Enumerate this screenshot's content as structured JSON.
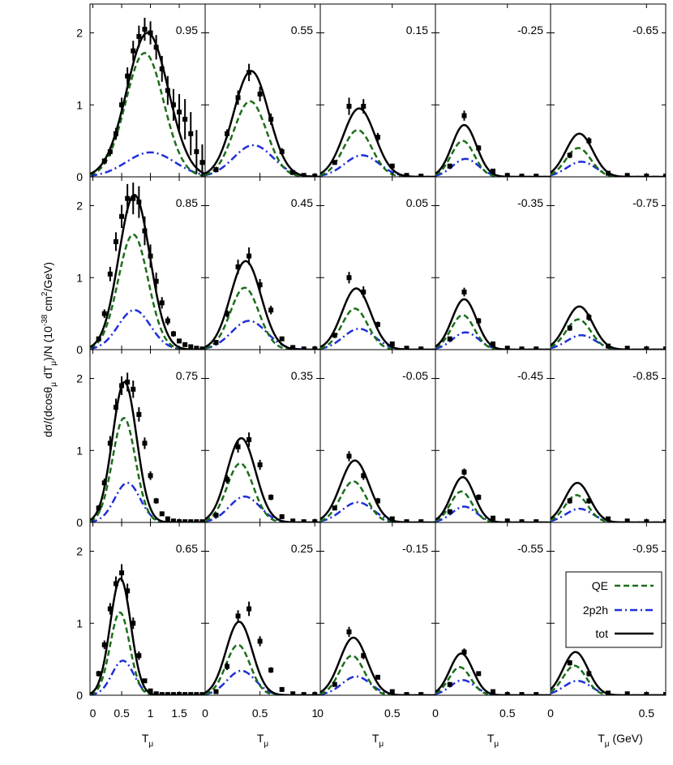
{
  "chart_data": {
    "type": "line",
    "ylabel_parts": [
      "dσ/(dcosθ",
      "μ",
      " dT",
      "μ",
      ")/N (10",
      "-38",
      " cm",
      "2",
      "/GeV)"
    ],
    "xlabel_main": "T",
    "xlabel_sub": "μ",
    "xlabel_unit": "(GeV)",
    "ylim": [
      0,
      2.4
    ],
    "yticks": [
      "0",
      "1",
      "2"
    ],
    "grid": false,
    "legend_position": "bottom-right panel",
    "series_names": [
      "QE",
      "2p2h",
      "tot"
    ],
    "colors": {
      "QE": "#1a6e1a",
      "2p2h": "#1f2fd8",
      "tot": "#000000",
      "data": "#000000"
    },
    "columns": [
      {
        "xlim": [
          -0.05,
          1.95
        ],
        "xticks": [
          {
            "v": 0,
            "l": "0"
          },
          {
            "v": 0.5,
            "l": "0.5"
          },
          {
            "v": 1,
            "l": "1"
          },
          {
            "v": 1.5,
            "l": "1.5"
          }
        ]
      },
      {
        "xlim": [
          0,
          1.05
        ],
        "xticks": [
          {
            "v": 0,
            "l": "0"
          },
          {
            "v": 0.5,
            "l": "0.5"
          },
          {
            "v": 1,
            "l": "1"
          }
        ]
      },
      {
        "xlim": [
          0,
          0.8
        ],
        "xticks": [
          {
            "v": 0,
            "l": "0"
          },
          {
            "v": 0.5,
            "l": "0.5"
          }
        ]
      },
      {
        "xlim": [
          0,
          0.8
        ],
        "xticks": [
          {
            "v": 0,
            "l": "0"
          },
          {
            "v": 0.5,
            "l": "0.5"
          }
        ]
      },
      {
        "xlim": [
          0,
          0.6
        ],
        "xticks": [
          {
            "v": 0,
            "l": "0"
          },
          {
            "v": 0.5,
            "l": "0.5"
          }
        ]
      }
    ],
    "panels": [
      {
        "label": "0.95",
        "row": 0,
        "col": 0,
        "x": [
          0.2,
          0.3,
          0.4,
          0.5,
          0.6,
          0.7,
          0.8,
          0.9,
          1.0,
          1.1,
          1.2,
          1.3,
          1.4,
          1.5,
          1.6,
          1.7,
          1.8,
          1.9
        ],
        "y": [
          0.22,
          0.35,
          0.6,
          1.0,
          1.4,
          1.75,
          1.95,
          2.05,
          2.0,
          1.8,
          1.5,
          1.2,
          1.0,
          0.9,
          0.8,
          0.6,
          0.35,
          0.2
        ],
        "err": [
          0.04,
          0.06,
          0.08,
          0.1,
          0.12,
          0.14,
          0.15,
          0.16,
          0.16,
          0.17,
          0.18,
          0.2,
          0.22,
          0.25,
          0.28,
          0.3,
          0.3,
          0.25
        ]
      },
      {
        "label": "0.85",
        "row": 1,
        "col": 0,
        "x": [
          0.1,
          0.2,
          0.3,
          0.4,
          0.5,
          0.6,
          0.7,
          0.8,
          0.9,
          1.0,
          1.1,
          1.2,
          1.3,
          1.4,
          1.5,
          1.6,
          1.7,
          1.8,
          1.9
        ],
        "y": [
          0.15,
          0.5,
          1.05,
          1.5,
          1.85,
          2.1,
          2.1,
          2.05,
          1.65,
          1.3,
          0.95,
          0.65,
          0.4,
          0.22,
          0.12,
          0.07,
          0.04,
          0.02,
          0.01
        ],
        "err": [
          0.03,
          0.06,
          0.1,
          0.13,
          0.16,
          0.2,
          0.22,
          0.22,
          0.2,
          0.16,
          0.12,
          0.08,
          0.06,
          0.04,
          0.03,
          0.02,
          0.02,
          0.01,
          0.01
        ]
      },
      {
        "label": "0.75",
        "row": 2,
        "col": 0,
        "x": [
          0.1,
          0.2,
          0.3,
          0.4,
          0.5,
          0.6,
          0.7,
          0.8,
          0.9,
          1.0,
          1.1,
          1.2,
          1.3,
          1.4,
          1.5,
          1.6,
          1.7,
          1.8,
          1.9
        ],
        "y": [
          0.2,
          0.55,
          1.1,
          1.6,
          1.9,
          1.95,
          1.85,
          1.5,
          1.1,
          0.65,
          0.3,
          0.12,
          0.05,
          0.02,
          0.01,
          0.01,
          0.01,
          0.01,
          0.01
        ],
        "err": [
          0.04,
          0.06,
          0.1,
          0.12,
          0.13,
          0.13,
          0.12,
          0.1,
          0.08,
          0.06,
          0.04,
          0.02,
          0.01,
          0.01,
          0.01,
          0.01,
          0.01,
          0.01,
          0.01
        ]
      },
      {
        "label": "0.65",
        "row": 3,
        "col": 0,
        "x": [
          0.1,
          0.2,
          0.3,
          0.4,
          0.5,
          0.6,
          0.7,
          0.8,
          0.9,
          1.0,
          1.1,
          1.2,
          1.3,
          1.4,
          1.5,
          1.6,
          1.7,
          1.8,
          1.9
        ],
        "y": [
          0.3,
          0.7,
          1.2,
          1.55,
          1.7,
          1.45,
          1.0,
          0.55,
          0.2,
          0.06,
          0.02,
          0.01,
          0.01,
          0.01,
          0.01,
          0.01,
          0.01,
          0.01,
          0.01
        ],
        "err": [
          0.04,
          0.06,
          0.08,
          0.1,
          0.12,
          0.1,
          0.08,
          0.06,
          0.03,
          0.01,
          0.01,
          0.01,
          0.01,
          0.01,
          0.01,
          0.01,
          0.01,
          0.01,
          0.01
        ]
      },
      {
        "label": "0.55",
        "row": 0,
        "col": 1,
        "x": [
          0.1,
          0.2,
          0.3,
          0.4,
          0.5,
          0.6,
          0.7,
          0.8,
          0.9,
          1.0
        ],
        "y": [
          0.1,
          0.6,
          1.1,
          1.45,
          1.15,
          0.8,
          0.35,
          0.06,
          0.02,
          0.01
        ],
        "err": [
          0.02,
          0.06,
          0.1,
          0.12,
          0.1,
          0.08,
          0.05,
          0.02,
          0.01,
          0.01
        ]
      },
      {
        "label": "0.45",
        "row": 1,
        "col": 1,
        "x": [
          0.1,
          0.2,
          0.3,
          0.4,
          0.5,
          0.6,
          0.7,
          0.8,
          0.9,
          1.0
        ],
        "y": [
          0.1,
          0.5,
          1.15,
          1.3,
          0.9,
          0.55,
          0.15,
          0.03,
          0.01,
          0.01
        ],
        "err": [
          0.02,
          0.05,
          0.1,
          0.12,
          0.08,
          0.06,
          0.03,
          0.01,
          0.01,
          0.01
        ]
      },
      {
        "label": "0.35",
        "row": 2,
        "col": 1,
        "x": [
          0.1,
          0.2,
          0.3,
          0.4,
          0.5,
          0.6,
          0.7,
          0.8,
          0.9,
          1.0
        ],
        "y": [
          0.1,
          0.6,
          1.05,
          1.15,
          0.8,
          0.35,
          0.08,
          0.02,
          0.01,
          0.01
        ],
        "err": [
          0.02,
          0.06,
          0.08,
          0.1,
          0.07,
          0.04,
          0.02,
          0.01,
          0.01,
          0.01
        ]
      },
      {
        "label": "0.25",
        "row": 3,
        "col": 1,
        "x": [
          0.1,
          0.2,
          0.3,
          0.4,
          0.5,
          0.6,
          0.7,
          0.8,
          0.9,
          1.0
        ],
        "y": [
          0.05,
          0.4,
          1.1,
          1.2,
          0.75,
          0.35,
          0.08,
          0.02,
          0.01,
          0.01
        ],
        "err": [
          0.02,
          0.05,
          0.08,
          0.1,
          0.07,
          0.04,
          0.02,
          0.01,
          0.01,
          0.01
        ]
      },
      {
        "label": "0.15",
        "row": 0,
        "col": 2,
        "x": [
          0.1,
          0.2,
          0.3,
          0.4,
          0.5,
          0.6,
          0.7
        ],
        "y": [
          0.2,
          0.98,
          0.98,
          0.55,
          0.15,
          0.02,
          0.01
        ],
        "err": [
          0.03,
          0.12,
          0.1,
          0.06,
          0.03,
          0.01,
          0.01
        ]
      },
      {
        "label": "0.05",
        "row": 1,
        "col": 2,
        "x": [
          0.1,
          0.2,
          0.3,
          0.4,
          0.5,
          0.6,
          0.7
        ],
        "y": [
          0.2,
          1.0,
          0.8,
          0.35,
          0.08,
          0.02,
          0.01
        ],
        "err": [
          0.03,
          0.08,
          0.08,
          0.04,
          0.02,
          0.01,
          0.01
        ]
      },
      {
        "label": "-0.05",
        "row": 2,
        "col": 2,
        "x": [
          0.1,
          0.2,
          0.3,
          0.4,
          0.5,
          0.6,
          0.7
        ],
        "y": [
          0.2,
          0.92,
          0.65,
          0.3,
          0.05,
          0.01,
          0.01
        ],
        "err": [
          0.03,
          0.07,
          0.06,
          0.04,
          0.02,
          0.01,
          0.01
        ]
      },
      {
        "label": "-0.15",
        "row": 3,
        "col": 2,
        "x": [
          0.1,
          0.2,
          0.3,
          0.4,
          0.5,
          0.6,
          0.7
        ],
        "y": [
          0.15,
          0.88,
          0.55,
          0.25,
          0.05,
          0.01,
          0.01
        ],
        "err": [
          0.03,
          0.07,
          0.05,
          0.03,
          0.02,
          0.01,
          0.01
        ]
      },
      {
        "label": "-0.25",
        "row": 0,
        "col": 3,
        "x": [
          0.1,
          0.2,
          0.3,
          0.4,
          0.5,
          0.6,
          0.7
        ],
        "y": [
          0.15,
          0.85,
          0.4,
          0.08,
          0.02,
          0.01,
          0.01
        ],
        "err": [
          0.03,
          0.07,
          0.04,
          0.02,
          0.01,
          0.01,
          0.01
        ]
      },
      {
        "label": "-0.35",
        "row": 1,
        "col": 3,
        "x": [
          0.1,
          0.2,
          0.3,
          0.4,
          0.5,
          0.6,
          0.7
        ],
        "y": [
          0.15,
          0.8,
          0.4,
          0.08,
          0.02,
          0.01,
          0.01
        ],
        "err": [
          0.03,
          0.06,
          0.04,
          0.02,
          0.01,
          0.01,
          0.01
        ]
      },
      {
        "label": "-0.45",
        "row": 2,
        "col": 3,
        "x": [
          0.1,
          0.2,
          0.3,
          0.4,
          0.5,
          0.6,
          0.7
        ],
        "y": [
          0.15,
          0.7,
          0.35,
          0.06,
          0.02,
          0.01,
          0.01
        ],
        "err": [
          0.03,
          0.05,
          0.04,
          0.02,
          0.01,
          0.01,
          0.01
        ]
      },
      {
        "label": "-0.55",
        "row": 3,
        "col": 3,
        "x": [
          0.1,
          0.2,
          0.3,
          0.4,
          0.5,
          0.6,
          0.7
        ],
        "y": [
          0.15,
          0.6,
          0.3,
          0.05,
          0.01,
          0.01,
          0.01
        ],
        "err": [
          0.03,
          0.05,
          0.03,
          0.02,
          0.01,
          0.01,
          0.01
        ]
      },
      {
        "label": "-0.65",
        "row": 0,
        "col": 4,
        "x": [
          0.1,
          0.2,
          0.3,
          0.4,
          0.5,
          0.6
        ],
        "y": [
          0.3,
          0.5,
          0.05,
          0.02,
          0.01,
          0.01
        ],
        "err": [
          0.04,
          0.05,
          0.02,
          0.01,
          0.01,
          0.01
        ]
      },
      {
        "label": "-0.75",
        "row": 1,
        "col": 4,
        "x": [
          0.1,
          0.2,
          0.3,
          0.4,
          0.5,
          0.6
        ],
        "y": [
          0.3,
          0.45,
          0.05,
          0.02,
          0.01,
          0.01
        ],
        "err": [
          0.04,
          0.05,
          0.02,
          0.01,
          0.01,
          0.01
        ]
      },
      {
        "label": "-0.85",
        "row": 2,
        "col": 4,
        "x": [
          0.1,
          0.2,
          0.3,
          0.4,
          0.5,
          0.6
        ],
        "y": [
          0.3,
          0.3,
          0.05,
          0.02,
          0.01,
          0.01
        ],
        "err": [
          0.04,
          0.04,
          0.02,
          0.01,
          0.01,
          0.01
        ]
      },
      {
        "label": "-0.95",
        "row": 3,
        "col": 4,
        "x": [
          0.1,
          0.2,
          0.3,
          0.4,
          0.5,
          0.6
        ],
        "y": [
          0.45,
          0.3,
          0.03,
          0.02,
          0.01,
          0.01
        ],
        "err": [
          0.04,
          0.04,
          0.02,
          0.01,
          0.01,
          0.01
        ]
      }
    ],
    "models": [
      {
        "label": "0.95",
        "tot": [
          2.0,
          0.95,
          0.36
        ],
        "qe": [
          1.72,
          0.9,
          0.33
        ],
        "np": [
          0.34,
          1.0,
          0.42
        ]
      },
      {
        "label": "0.85",
        "tot": [
          2.15,
          0.72,
          0.27
        ],
        "qe": [
          1.6,
          0.7,
          0.26
        ],
        "np": [
          0.55,
          0.72,
          0.28
        ]
      },
      {
        "label": "0.75",
        "tot": [
          1.95,
          0.55,
          0.21
        ],
        "qe": [
          1.45,
          0.54,
          0.2
        ],
        "np": [
          0.55,
          0.6,
          0.22
        ]
      },
      {
        "label": "0.65",
        "tot": [
          1.62,
          0.48,
          0.18
        ],
        "qe": [
          1.15,
          0.47,
          0.17
        ],
        "np": [
          0.48,
          0.52,
          0.19
        ]
      },
      {
        "label": "0.55",
        "tot": [
          1.47,
          0.42,
          0.16
        ],
        "qe": [
          1.05,
          0.41,
          0.15
        ],
        "np": [
          0.44,
          0.44,
          0.18
        ]
      },
      {
        "label": "0.45",
        "tot": [
          1.23,
          0.37,
          0.14
        ],
        "qe": [
          0.86,
          0.36,
          0.13
        ],
        "np": [
          0.4,
          0.4,
          0.16
        ]
      },
      {
        "label": "0.35",
        "tot": [
          1.17,
          0.33,
          0.13
        ],
        "qe": [
          0.82,
          0.32,
          0.12
        ],
        "np": [
          0.36,
          0.36,
          0.14
        ]
      },
      {
        "label": "0.25",
        "tot": [
          1.02,
          0.31,
          0.12
        ],
        "qe": [
          0.7,
          0.3,
          0.11
        ],
        "np": [
          0.34,
          0.33,
          0.13
        ]
      },
      {
        "label": "0.15",
        "tot": [
          0.95,
          0.27,
          0.11
        ],
        "qe": [
          0.65,
          0.26,
          0.1
        ],
        "np": [
          0.3,
          0.29,
          0.12
        ]
      },
      {
        "label": "0.05",
        "tot": [
          0.85,
          0.25,
          0.1
        ],
        "qe": [
          0.57,
          0.24,
          0.09
        ],
        "np": [
          0.29,
          0.27,
          0.11
        ]
      },
      {
        "label": "-0.05",
        "tot": [
          0.86,
          0.24,
          0.1
        ],
        "qe": [
          0.57,
          0.23,
          0.09
        ],
        "np": [
          0.28,
          0.26,
          0.11
        ]
      },
      {
        "label": "-0.15",
        "tot": [
          0.8,
          0.23,
          0.095
        ],
        "qe": [
          0.55,
          0.22,
          0.085
        ],
        "np": [
          0.26,
          0.25,
          0.1
        ]
      },
      {
        "label": "-0.25",
        "tot": [
          0.72,
          0.2,
          0.085
        ],
        "qe": [
          0.5,
          0.19,
          0.08
        ],
        "np": [
          0.25,
          0.21,
          0.09
        ]
      },
      {
        "label": "-0.35",
        "tot": [
          0.7,
          0.2,
          0.085
        ],
        "qe": [
          0.48,
          0.19,
          0.08
        ],
        "np": [
          0.24,
          0.21,
          0.09
        ]
      },
      {
        "label": "-0.45",
        "tot": [
          0.63,
          0.19,
          0.08
        ],
        "qe": [
          0.43,
          0.18,
          0.075
        ],
        "np": [
          0.22,
          0.2,
          0.085
        ]
      },
      {
        "label": "-0.55",
        "tot": [
          0.58,
          0.18,
          0.08
        ],
        "qe": [
          0.39,
          0.17,
          0.075
        ],
        "np": [
          0.21,
          0.19,
          0.085
        ]
      },
      {
        "label": "-0.65",
        "tot": [
          0.6,
          0.15,
          0.07
        ],
        "qe": [
          0.4,
          0.145,
          0.065
        ],
        "np": [
          0.21,
          0.16,
          0.075
        ]
      },
      {
        "label": "-0.75",
        "tot": [
          0.6,
          0.15,
          0.07
        ],
        "qe": [
          0.42,
          0.145,
          0.065
        ],
        "np": [
          0.2,
          0.16,
          0.075
        ]
      },
      {
        "label": "-0.85",
        "tot": [
          0.55,
          0.14,
          0.065
        ],
        "qe": [
          0.38,
          0.135,
          0.06
        ],
        "np": [
          0.19,
          0.15,
          0.07
        ]
      },
      {
        "label": "-0.95",
        "tot": [
          0.6,
          0.13,
          0.065
        ],
        "qe": [
          0.41,
          0.125,
          0.06
        ],
        "np": [
          0.2,
          0.14,
          0.07
        ]
      }
    ]
  }
}
